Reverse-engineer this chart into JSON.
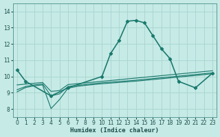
{
  "xlabel": "Humidex (Indice chaleur)",
  "xlim": [
    -0.5,
    23.5
  ],
  "ylim": [
    7.5,
    14.5
  ],
  "yticks": [
    8,
    9,
    10,
    11,
    12,
    13,
    14
  ],
  "xticks": [
    0,
    1,
    2,
    3,
    4,
    5,
    6,
    7,
    8,
    9,
    10,
    11,
    12,
    13,
    14,
    15,
    16,
    17,
    18,
    19,
    20,
    21,
    22,
    23
  ],
  "bg_color": "#c6eae6",
  "grid_color": "#a8d4cf",
  "line_color": "#1a7a6e",
  "main_x": [
    0,
    1,
    4,
    6,
    10,
    11,
    12,
    13,
    14,
    15,
    16,
    17,
    18,
    19,
    21,
    23
  ],
  "main_y": [
    10.4,
    9.7,
    8.8,
    9.3,
    10.0,
    11.4,
    12.2,
    13.4,
    13.45,
    13.3,
    12.5,
    11.7,
    11.1,
    9.7,
    9.3,
    10.2
  ],
  "flat1_x": [
    0,
    1,
    2,
    3,
    4,
    5,
    6,
    7,
    8,
    9,
    10,
    11,
    12,
    13,
    14,
    15,
    16,
    17,
    18,
    19,
    20,
    21,
    22,
    23
  ],
  "flat1_y": [
    9.05,
    9.32,
    9.42,
    9.48,
    8.02,
    8.58,
    9.28,
    9.38,
    9.45,
    9.5,
    9.55,
    9.59,
    9.63,
    9.67,
    9.71,
    9.76,
    9.81,
    9.86,
    9.91,
    9.96,
    10.01,
    10.06,
    10.11,
    10.17
  ],
  "flat2_x": [
    0,
    1,
    2,
    3,
    4,
    5,
    6,
    7,
    8,
    9,
    10,
    11,
    12,
    13,
    14,
    15,
    16,
    17,
    18,
    19,
    20,
    21,
    22,
    23
  ],
  "flat2_y": [
    9.18,
    9.38,
    9.48,
    9.54,
    8.8,
    8.93,
    9.38,
    9.45,
    9.5,
    9.56,
    9.61,
    9.65,
    9.69,
    9.73,
    9.77,
    9.82,
    9.87,
    9.92,
    9.97,
    10.02,
    10.07,
    10.12,
    10.17,
    10.22
  ],
  "flat3_x": [
    0,
    1,
    2,
    3,
    4,
    5,
    6,
    7,
    8,
    9,
    10,
    11,
    12,
    13,
    14,
    15,
    16,
    17,
    18,
    19,
    20,
    21,
    22,
    23
  ],
  "flat3_y": [
    9.48,
    9.53,
    9.58,
    9.63,
    9.08,
    9.13,
    9.5,
    9.55,
    9.6,
    9.65,
    9.7,
    9.75,
    9.8,
    9.85,
    9.9,
    9.95,
    10.0,
    10.05,
    10.1,
    10.15,
    10.2,
    10.25,
    10.3,
    10.35
  ]
}
